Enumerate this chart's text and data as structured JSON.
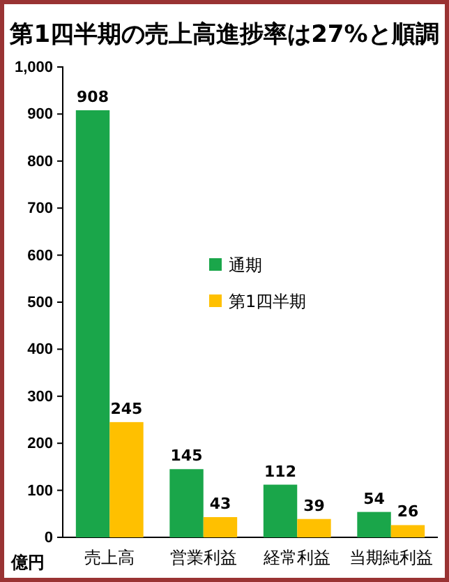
{
  "chart_data": {
    "type": "bar",
    "title": "第1四半期の売上高進捗率は27%と順調",
    "ylabel": "億円",
    "categories": [
      "売上高",
      "営業利益",
      "経常利益",
      "当期純利益"
    ],
    "series": [
      {
        "name": "通期",
        "color": "#1aa64a",
        "values": [
          908,
          145,
          112,
          54
        ]
      },
      {
        "name": "第1四半期",
        "color": "#ffc000",
        "values": [
          245,
          43,
          39,
          26
        ]
      }
    ],
    "ylim": [
      0,
      1000
    ],
    "yticks": [
      0,
      100,
      200,
      300,
      400,
      500,
      600,
      700,
      800,
      900,
      {
        "value": 1000,
        "label": "1,000"
      }
    ],
    "data_labels": true,
    "grid": false,
    "legend": "center"
  }
}
